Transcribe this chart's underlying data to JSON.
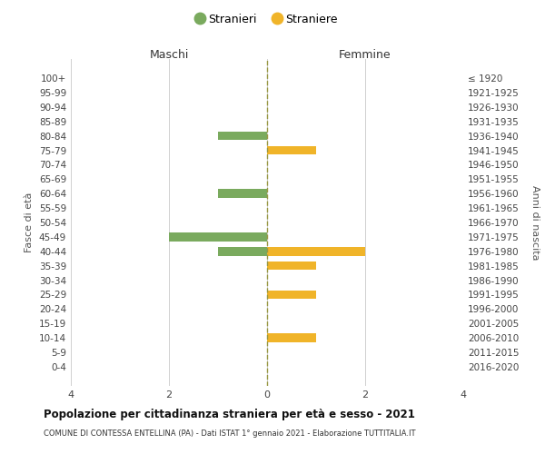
{
  "age_groups": [
    "100+",
    "95-99",
    "90-94",
    "85-89",
    "80-84",
    "75-79",
    "70-74",
    "65-69",
    "60-64",
    "55-59",
    "50-54",
    "45-49",
    "40-44",
    "35-39",
    "30-34",
    "25-29",
    "20-24",
    "15-19",
    "10-14",
    "5-9",
    "0-4"
  ],
  "birth_years": [
    "≤ 1920",
    "1921-1925",
    "1926-1930",
    "1931-1935",
    "1936-1940",
    "1941-1945",
    "1946-1950",
    "1951-1955",
    "1956-1960",
    "1961-1965",
    "1966-1970",
    "1971-1975",
    "1976-1980",
    "1981-1985",
    "1986-1990",
    "1991-1995",
    "1996-2000",
    "2001-2005",
    "2006-2010",
    "2011-2015",
    "2016-2020"
  ],
  "maschi_stranieri": [
    0,
    0,
    0,
    0,
    1,
    0,
    0,
    0,
    1,
    0,
    0,
    2,
    1,
    0,
    0,
    0,
    0,
    0,
    0,
    0,
    0
  ],
  "femmine_straniere": [
    0,
    0,
    0,
    0,
    0,
    1,
    0,
    0,
    0,
    0,
    0,
    0,
    2,
    1,
    0,
    1,
    0,
    0,
    1,
    0,
    0
  ],
  "color_maschi": "#7aaa5e",
  "color_femmine": "#f0b429",
  "title": "Popolazione per cittadinanza straniera per età e sesso - 2021",
  "subtitle": "COMUNE DI CONTESSA ENTELLINA (PA) - Dati ISTAT 1° gennaio 2021 - Elaborazione TUTTITALIA.IT",
  "xlabel_left": "Maschi",
  "xlabel_right": "Femmine",
  "ylabel_left": "Fasce di età",
  "ylabel_right": "Anni di nascita",
  "legend_maschi": "Stranieri",
  "legend_femmine": "Straniere",
  "xlim": 4,
  "dashed_line_color": "#999944",
  "grid_color": "#d0d0d0",
  "bg_color": "#ffffff"
}
